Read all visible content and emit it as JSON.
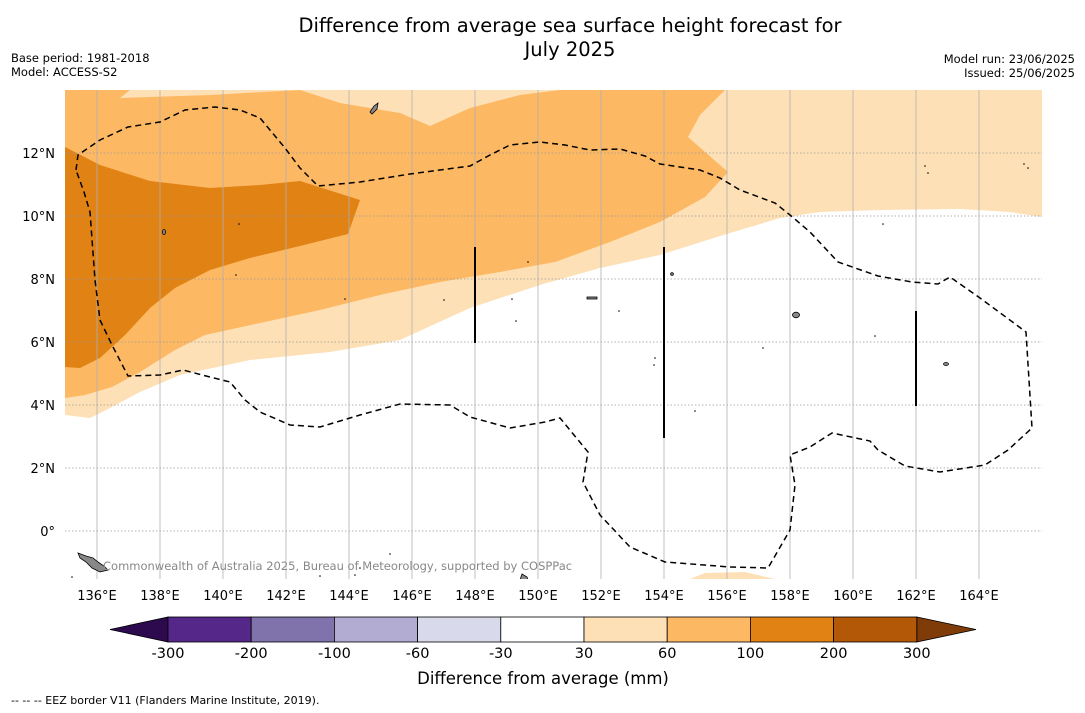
{
  "title": {
    "line1": "Difference from average sea surface height forecast for",
    "line2": "July 2025"
  },
  "meta": {
    "base_period": "Base period: 1981-2018",
    "model": "Model: ACCESS-S2",
    "model_run": "Model run: 23/06/2025",
    "issued": "Issued: 25/06/2025"
  },
  "map": {
    "lon_ticks": [
      "136°E",
      "138°E",
      "140°E",
      "142°E",
      "144°E",
      "146°E",
      "148°E",
      "150°E",
      "152°E",
      "154°E",
      "156°E",
      "158°E",
      "160°E",
      "162°E",
      "164°E"
    ],
    "lat_ticks": [
      "12°N",
      "10°N",
      "8°N",
      "6°N",
      "4°N",
      "2°N",
      "0°"
    ],
    "attribution": "Commonwealth of Australia 2025, Bureau of Meteorology, supported by COSPPac"
  },
  "colorbar": {
    "label": "Difference from average (mm)",
    "ticks": [
      "-300",
      "-200",
      "-100",
      "-60",
      "-30",
      "30",
      "60",
      "100",
      "200",
      "300"
    ],
    "colors": {
      "under": "#2d0a4e",
      "bins": [
        "#542788",
        "#8073ac",
        "#b2abd2",
        "#d8daeb",
        "#ffffff",
        "#fee0b6",
        "#fdb863",
        "#e08214",
        "#b35806"
      ],
      "over": "#7f3b08"
    }
  },
  "footnote": "--  --  -- EEZ border V11 (Flanders Marine Institute, 2019)."
}
